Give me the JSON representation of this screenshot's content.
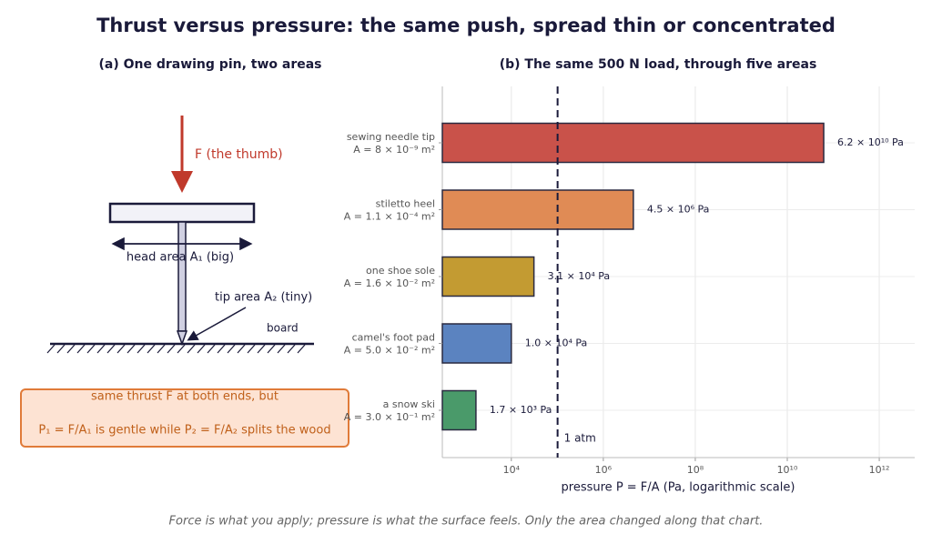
{
  "title": "Thrust versus pressure: the same push, spread thin or concentrated",
  "footer": "Force is what you apply; pressure is what the surface feels. Only the area changed along that chart.",
  "diagram": {
    "title": "(a) One drawing pin, two areas",
    "force_label": "F (the thumb)",
    "head_label": "head area A₁ (big)",
    "tip_label": "tip area A₂ (tiny)",
    "board_label": "board",
    "note_lines": [
      "same thrust F at both ends, but",
      "P₁ = F/A₁  is gentle while  P₂ = F/A₂  splits the wood"
    ]
  },
  "chart_data": {
    "type": "bar",
    "orientation": "horizontal",
    "title": "(b) The same 500 N load, through five areas",
    "xlabel": "pressure  P = F/A   (Pa, logarithmic scale)",
    "categories": [
      "sewing needle tip",
      "stiletto heel",
      "one shoe sole",
      "camel's foot pad",
      "a snow ski"
    ],
    "area_labels": [
      "A = 8 × 10⁻⁹ m²",
      "A = 1.1 × 10⁻⁴ m²",
      "A = 1.6 × 10⁻² m²",
      "A = 5.0 × 10⁻² m²",
      "A = 3.0 × 10⁻¹ m²"
    ],
    "values": [
      62000000000,
      4500000,
      31000,
      10000,
      1700
    ],
    "value_labels": [
      "6.2 × 10¹⁰ Pa",
      "4.5 × 10⁶ Pa",
      "3.1 × 10⁴ Pa",
      "1.0 × 10⁴ Pa",
      "1.7 × 10³ Pa"
    ],
    "colors": [
      "#c9524a",
      "#e08b55",
      "#c39b32",
      "#5b83c0",
      "#4a9a6a"
    ],
    "xscale": "log",
    "xlim": [
      316,
      5900000000000
    ],
    "xticks": [
      {
        "value": 10000,
        "label": "10⁴"
      },
      {
        "value": 1000000,
        "label": "10⁶"
      },
      {
        "value": 100000000,
        "label": "10⁸"
      },
      {
        "value": 10000000000,
        "label": "10¹⁰"
      },
      {
        "value": 1000000000000,
        "label": "10¹²"
      }
    ],
    "reference_line": {
      "value": 101325,
      "label": "1 atm"
    },
    "grid": true
  }
}
